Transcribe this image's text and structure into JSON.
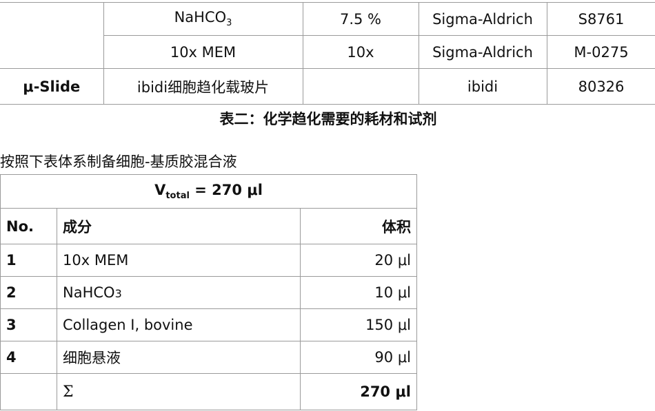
{
  "reagent_table": {
    "rows": [
      {
        "item": "",
        "name": "NaHCO",
        "name_sub": "3",
        "concentration": "7.5 %",
        "supplier": "Sigma-Aldrich",
        "catalog": "S8761"
      },
      {
        "item": "",
        "name": "10x MEM",
        "concentration": "10x",
        "supplier": "Sigma-Aldrich",
        "catalog": "M-0275"
      },
      {
        "item": "μ-Slide",
        "name": "ibidi细胞趋化载玻片",
        "concentration": "",
        "supplier": "ibidi",
        "catalog": "80326"
      }
    ],
    "caption": "表二：化学趋化需要的耗材和试剂"
  },
  "instruction": "按照下表体系制备细胞-基质胶混合液",
  "mix_table": {
    "total_label": "V",
    "total_sub": "total",
    "total_value": " = 270 μl",
    "headers": {
      "no": "No.",
      "component": "成分",
      "volume": "体积"
    },
    "rows": [
      {
        "no": "1",
        "component": "10x MEM",
        "volume": "20 μl"
      },
      {
        "no": "2",
        "component": "NaHCO",
        "component_sub": "3",
        "volume": "10 μl"
      },
      {
        "no": "3",
        "component": "Collagen I, bovine",
        "volume": "150 μl"
      },
      {
        "no": "4",
        "component": "细胞悬液",
        "volume": "90 μl"
      }
    ],
    "sum": {
      "symbol": "Σ",
      "volume": "270 μl"
    }
  }
}
